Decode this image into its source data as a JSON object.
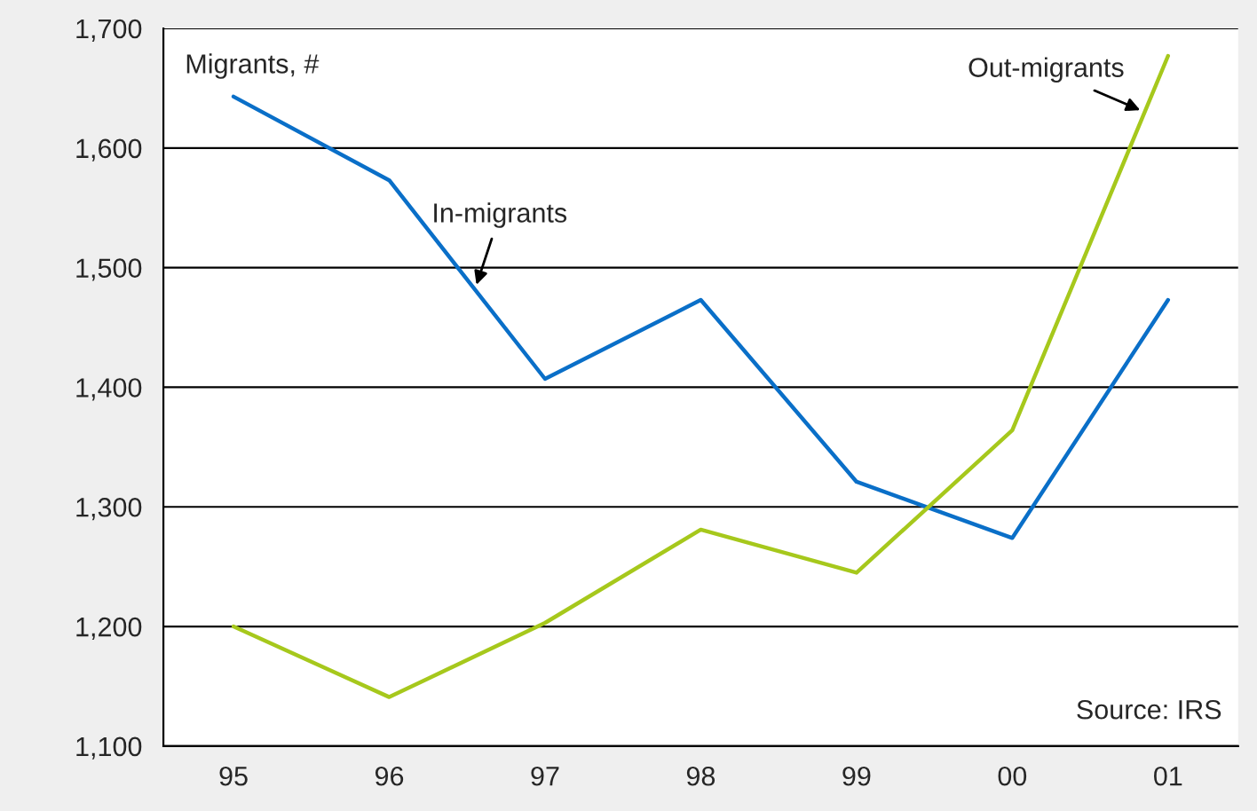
{
  "chart_data": {
    "type": "line",
    "ylabel": "Migrants, #",
    "categories": [
      "95",
      "96",
      "97",
      "98",
      "99",
      "00",
      "01"
    ],
    "series": [
      {
        "name": "In-migrants",
        "color": "#0a6fc8",
        "values": [
          1643,
          1573,
          1407,
          1473,
          1321,
          1274,
          1473
        ]
      },
      {
        "name": "Out-migrants",
        "color": "#a6c81c",
        "values": [
          1200,
          1141,
          1203,
          1281,
          1245,
          1364,
          1677
        ]
      }
    ],
    "ylim": [
      1100,
      1700
    ],
    "yticks": [
      {
        "value": 1100,
        "label": "1,100"
      },
      {
        "value": 1200,
        "label": "1,200"
      },
      {
        "value": 1300,
        "label": "1,300"
      },
      {
        "value": 1400,
        "label": "1,400"
      },
      {
        "value": 1500,
        "label": "1,500"
      },
      {
        "value": 1600,
        "label": "1,600"
      },
      {
        "value": 1700,
        "label": "1,700"
      }
    ],
    "grid": "y",
    "legend": false,
    "marker": "none",
    "line_style": "solid",
    "annotations": [
      "Source: IRS"
    ]
  }
}
